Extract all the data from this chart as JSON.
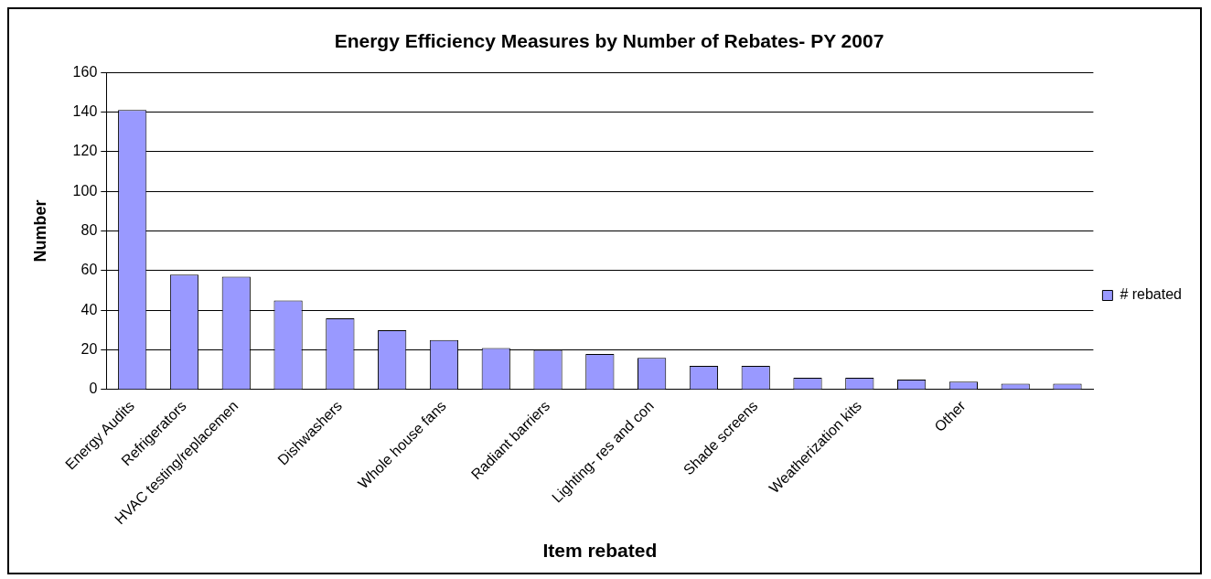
{
  "chart_data": {
    "type": "bar",
    "title": "Energy Efficiency Measures by Number of Rebates- PY 2007",
    "xlabel": "Item rebated",
    "ylabel": "Number",
    "categories": [
      "Energy Audits",
      "Refrigerators",
      "HVAC testing/replacemen",
      null,
      "Dishwashers",
      null,
      "Whole house fans",
      null,
      "Radiant barriers",
      null,
      "Lighting- res and con",
      null,
      "Shade screens",
      null,
      "Weatherization kits",
      null,
      "Other",
      null,
      null
    ],
    "series": [
      {
        "name": "# rebated",
        "color": "#9999ff",
        "values": [
          141,
          58,
          57,
          45,
          36,
          30,
          25,
          21,
          20,
          18,
          16,
          12,
          12,
          6,
          6,
          5,
          4,
          3,
          3
        ]
      }
    ],
    "ylim": [
      0,
      160
    ],
    "yticks": [
      0,
      20,
      40,
      60,
      80,
      100,
      120,
      140,
      160
    ],
    "grid": "y",
    "legend": "right"
  }
}
